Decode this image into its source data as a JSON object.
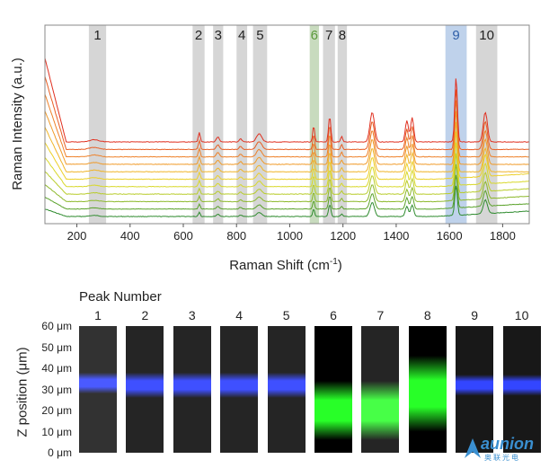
{
  "chart_data": [
    {
      "type": "line",
      "xlabel": "Raman Shift (cm",
      "xlabel_sup": "-1",
      "xlabel_end": ")",
      "ylabel": "Raman Intensity (a.u.)",
      "xlim": [
        80,
        1900
      ],
      "xticks": [
        "200",
        "400",
        "600",
        "800",
        "1000",
        "1200",
        "1400",
        "1600",
        "1800"
      ],
      "xtick_values": [
        200,
        400,
        600,
        800,
        1000,
        1200,
        1400,
        1600,
        1800
      ],
      "series_count": 11,
      "series_colors": [
        "#2e8b2e",
        "#5aa22a",
        "#8cb82a",
        "#b8cc2a",
        "#d8d82a",
        "#ecd028",
        "#f0b428",
        "#f09a28",
        "#ee8028",
        "#e85e24",
        "#e03020"
      ],
      "highlight_bands": [
        {
          "label": "1",
          "x_from": 245,
          "x_to": 310,
          "color": "#c8c8c8"
        },
        {
          "label": "2",
          "x_from": 635,
          "x_to": 680,
          "color": "#c8c8c8"
        },
        {
          "label": "3",
          "x_from": 712,
          "x_to": 750,
          "color": "#c8c8c8"
        },
        {
          "label": "4",
          "x_from": 800,
          "x_to": 840,
          "color": "#c8c8c8"
        },
        {
          "label": "5",
          "x_from": 862,
          "x_to": 915,
          "color": "#c8c8c8"
        },
        {
          "label": "6",
          "x_from": 1075,
          "x_to": 1110,
          "color": "#b6cfa8",
          "label_color": "#5a9a3a"
        },
        {
          "label": "7",
          "x_from": 1125,
          "x_to": 1170,
          "color": "#c8c8c8"
        },
        {
          "label": "8",
          "x_from": 1180,
          "x_to": 1215,
          "color": "#c8c8c8"
        },
        {
          "label": "9",
          "x_from": 1585,
          "x_to": 1665,
          "color": "#a9c3e4",
          "label_color": "#2f5fa8"
        },
        {
          "label": "10",
          "x_from": 1700,
          "x_to": 1780,
          "color": "#c8c8c8"
        }
      ],
      "peaks": [
        {
          "center": 265,
          "width": 25,
          "height": 0.08
        },
        {
          "center": 660,
          "width": 5,
          "height": 0.35
        },
        {
          "center": 730,
          "width": 8,
          "height": 0.18
        },
        {
          "center": 815,
          "width": 7,
          "height": 0.12
        },
        {
          "center": 885,
          "width": 14,
          "height": 0.3
        },
        {
          "center": 1090,
          "width": 5,
          "height": 0.6
        },
        {
          "center": 1150,
          "width": 6,
          "height": 0.95
        },
        {
          "center": 1195,
          "width": 5,
          "height": 0.2
        },
        {
          "center": 1310,
          "width": 12,
          "height": 1.1
        },
        {
          "center": 1440,
          "width": 8,
          "height": 0.8
        },
        {
          "center": 1460,
          "width": 8,
          "height": 0.9
        },
        {
          "center": 1625,
          "width": 7,
          "height": 2.4
        },
        {
          "center": 1735,
          "width": 11,
          "height": 1.1
        }
      ]
    },
    {
      "type": "heatmap",
      "title": "Peak Number",
      "ylabel": "Z position (μm)",
      "yticks": [
        "60 μm",
        "50 μm",
        "40 μm",
        "30 μm",
        "20 μm",
        "10 μm",
        "0 μm"
      ],
      "ytick_values": [
        60,
        50,
        40,
        30,
        20,
        10,
        0
      ],
      "columns": [
        {
          "label": "1",
          "color": "#1e32ff",
          "center_um": 33,
          "width_um": 5,
          "intensity": 0.7
        },
        {
          "label": "2",
          "color": "#1e32ff",
          "center_um": 32,
          "width_um": 6,
          "intensity": 0.75
        },
        {
          "label": "3",
          "color": "#1e32ff",
          "center_um": 32,
          "width_um": 6,
          "intensity": 0.75
        },
        {
          "label": "4",
          "color": "#1e32ff",
          "center_um": 32,
          "width_um": 6,
          "intensity": 0.75
        },
        {
          "label": "5",
          "color": "#1e32ff",
          "center_um": 32,
          "width_um": 6,
          "intensity": 0.75
        },
        {
          "label": "6",
          "color": "#28ff28",
          "center_um": 20,
          "width_um": 14,
          "intensity": 0.9
        },
        {
          "label": "7",
          "color": "#28ff28",
          "center_um": 20,
          "width_um": 14,
          "intensity": 0.75
        },
        {
          "label": "8",
          "color": "#28ff28",
          "center_um": 28,
          "width_um": 18,
          "intensity": 0.95
        },
        {
          "label": "9",
          "color": "#1e32ff",
          "center_um": 32,
          "width_um": 5,
          "intensity": 0.8
        },
        {
          "label": "10",
          "color": "#1e32ff",
          "center_um": 32,
          "width_um": 5,
          "intensity": 0.8
        }
      ]
    }
  ],
  "logo": {
    "text": "aunion",
    "sub": "奥联光电"
  }
}
